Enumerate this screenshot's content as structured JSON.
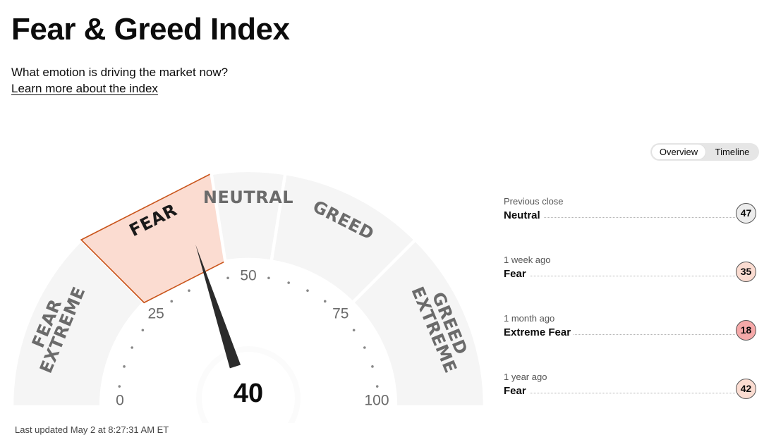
{
  "header": {
    "title": "Fear & Greed Index",
    "subtitle": "What emotion is driving the market now?",
    "learn_more": "Learn more about the index"
  },
  "view_toggle": {
    "options": [
      "Overview",
      "Timeline"
    ],
    "selected": "Overview"
  },
  "gauge": {
    "value": "40",
    "value_number": 40,
    "min": 0,
    "max": 100,
    "active_segment": "FEAR",
    "segments": [
      {
        "label": "EXTREME FEAR",
        "lines": [
          "EXTREME",
          "FEAR"
        ],
        "from": 0,
        "to": 25
      },
      {
        "label": "FEAR",
        "lines": [
          "FEAR"
        ],
        "from": 25,
        "to": 45
      },
      {
        "label": "NEUTRAL",
        "lines": [
          "NEUTRAL"
        ],
        "from": 45,
        "to": 55
      },
      {
        "label": "GREED",
        "lines": [
          "GREED"
        ],
        "from": 55,
        "to": 75
      },
      {
        "label": "EXTREME GREED",
        "lines": [
          "EXTREME",
          "GREED"
        ],
        "from": 75,
        "to": 100
      }
    ],
    "tick_labels": [
      "0",
      "25",
      "50",
      "75",
      "100"
    ],
    "last_updated": "Last updated May 2 at 8:27:31 AM ET",
    "colors": {
      "segment": "#f5f5f5",
      "active_fill": "#fbdcd1",
      "active_stroke": "#c9541a",
      "label": "#6b6b6b",
      "active_label": "#1a1a1a",
      "needle": "#2b2b2b",
      "dots": "#888888"
    }
  },
  "history": [
    {
      "label": "Previous close",
      "status": "Neutral",
      "value": "47",
      "color": "#ececec"
    },
    {
      "label": "1 week ago",
      "status": "Fear",
      "value": "35",
      "color": "#fbdcd1"
    },
    {
      "label": "1 month ago",
      "status": "Extreme Fear",
      "value": "18",
      "color": "#f6a9a9"
    },
    {
      "label": "1 year ago",
      "status": "Fear",
      "value": "42",
      "color": "#fbdcd1"
    }
  ]
}
